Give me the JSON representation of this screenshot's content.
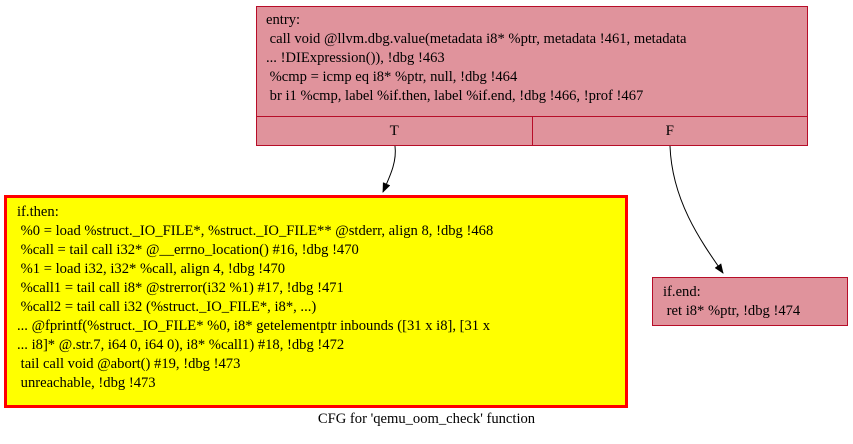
{
  "entry": {
    "lines": [
      "entry:",
      " call void @llvm.dbg.value(metadata i8* %ptr, metadata !461, metadata",
      "... !DIExpression()), !dbg !463",
      " %cmp = icmp eq i8* %ptr, null, !dbg !464",
      " br i1 %cmp, label %if.then, label %if.end, !dbg !466, !prof !467"
    ],
    "ports": [
      "T",
      "F"
    ]
  },
  "if_then": {
    "lines": [
      "if.then:",
      " %0 = load %struct._IO_FILE*, %struct._IO_FILE** @stderr, align 8, !dbg !468",
      " %call = tail call i32* @__errno_location() #16, !dbg !470",
      " %1 = load i32, i32* %call, align 4, !dbg !470",
      " %call1 = tail call i8* @strerror(i32 %1) #17, !dbg !471",
      " %call2 = tail call i32 (%struct._IO_FILE*, i8*, ...)",
      "... @fprintf(%struct._IO_FILE* %0, i8* getelementptr inbounds ([31 x i8], [31 x",
      "... i8]* @.str.7, i64 0, i64 0), i8* %call1) #18, !dbg !472",
      " tail call void @abort() #19, !dbg !473",
      " unreachable, !dbg !473"
    ]
  },
  "if_end": {
    "lines": [
      "if.end:",
      " ret i8* %ptr, !dbg !474"
    ]
  },
  "caption": "CFG for 'qemu_oom_check' function",
  "colors": {
    "node_fill": "#e0939c",
    "node_border": "#b70d28",
    "highlight_fill": "#ffff00",
    "highlight_border": "#ff0000"
  }
}
